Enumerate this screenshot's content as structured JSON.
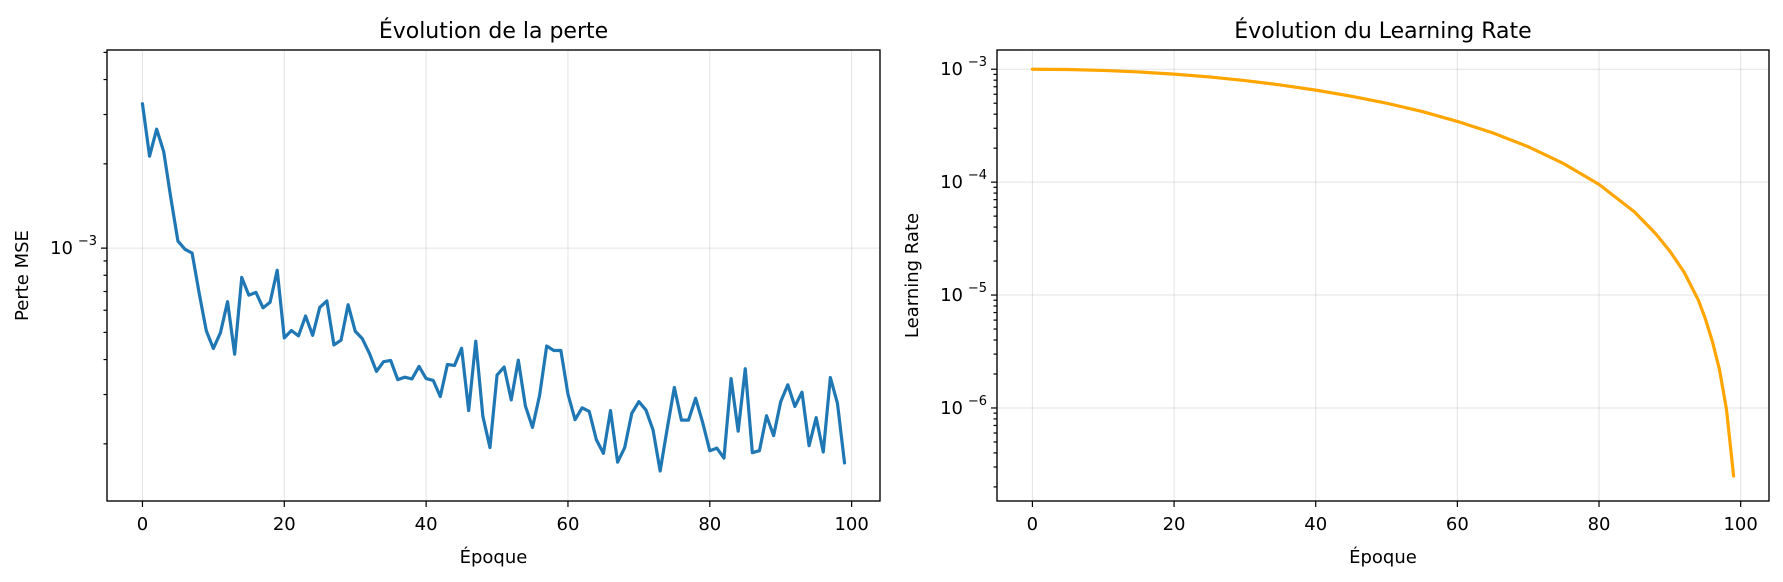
{
  "chart_data": [
    {
      "type": "line",
      "title": "Évolution de la perte",
      "xlabel": "Époque",
      "ylabel": "Perte MSE",
      "yscale": "log",
      "xlim": [
        -5,
        104
      ],
      "ylim": [
        0.000125,
        0.0051
      ],
      "grid": true,
      "x_ticks": [
        "0",
        "20",
        "40",
        "60",
        "80",
        "100"
      ],
      "y_ticks": [
        {
          "value": 0.001,
          "base": "10",
          "exp": "−3"
        }
      ],
      "color": "#1f77b4",
      "series": [
        {
          "x": [
            0,
            1,
            2,
            3,
            4,
            5,
            6,
            7,
            8,
            9,
            10,
            11,
            12,
            13,
            14,
            15,
            16,
            17,
            18,
            19,
            20,
            21,
            22,
            23,
            24,
            25,
            26,
            27,
            28,
            29,
            30,
            31,
            32,
            33,
            34,
            35,
            36,
            37,
            38,
            39,
            40,
            41,
            42,
            43,
            44,
            45,
            46,
            47,
            48,
            49,
            50,
            51,
            52,
            53,
            54,
            55,
            56,
            57,
            58,
            59,
            60,
            61,
            62,
            63,
            64,
            65,
            66,
            67,
            68,
            69,
            70,
            71,
            72,
            73,
            74,
            75,
            76,
            77,
            78,
            79,
            80,
            81,
            82,
            83,
            84,
            85,
            86,
            87,
            88,
            89,
            90,
            91,
            92,
            93,
            94,
            95,
            96,
            97,
            98,
            99
          ],
          "values": [
            0.00328,
            0.00213,
            0.00266,
            0.00221,
            0.00151,
            0.00106,
            0.00099,
            0.00096,
            0.00069,
            0.000507,
            0.000438,
            0.000499,
            0.000644,
            0.000418,
            0.000786,
            0.000679,
            0.000695,
            0.000612,
            0.000641,
            0.000834,
            0.000478,
            0.000508,
            0.000486,
            0.000572,
            0.000488,
            0.000614,
            0.000648,
            0.000451,
            0.000469,
            0.000628,
            0.000505,
            0.000475,
            0.000421,
            0.000363,
            0.000393,
            0.000397,
            0.000339,
            0.000346,
            0.000341,
            0.000378,
            0.000342,
            0.000337,
            0.000295,
            0.000384,
            0.000381,
            0.000439,
            0.000263,
            0.000465,
            0.000251,
            0.000194,
            0.000352,
            0.000376,
            0.000287,
            0.000398,
            0.000273,
            0.000229,
            0.000298,
            0.000447,
            0.000431,
            0.000431,
            0.000301,
            0.000244,
            0.000269,
            0.000261,
            0.000207,
            0.000185,
            0.000263,
            0.000172,
            0.000194,
            0.000257,
            0.000283,
            0.000264,
            0.000224,
            0.00016,
            0.000227,
            0.000318,
            0.000243,
            0.000243,
            0.000291,
            0.000238,
            0.000189,
            0.000193,
            0.000178,
            0.000342,
            0.000222,
            0.000371,
            0.000186,
            0.000189,
            0.000252,
            0.000214,
            0.000283,
            0.000325,
            0.000272,
            0.000306,
            0.000197,
            0.000248,
            0.000187,
            0.000345,
            0.000279,
            0.000171
          ]
        }
      ]
    },
    {
      "type": "line",
      "title": "Évolution du Learning Rate",
      "xlabel": "Époque",
      "ylabel": "Learning Rate",
      "yscale": "log",
      "xlim": [
        -5,
        104
      ],
      "ylim": [
        1.5e-07,
        0.00148
      ],
      "grid": true,
      "x_ticks": [
        "0",
        "20",
        "40",
        "60",
        "80",
        "100"
      ],
      "y_ticks": [
        {
          "value": 0.001,
          "base": "10",
          "exp": "−3"
        },
        {
          "value": 0.0001,
          "base": "10",
          "exp": "−4"
        },
        {
          "value": 1e-05,
          "base": "10",
          "exp": "−5"
        },
        {
          "value": 1e-06,
          "base": "10",
          "exp": "−6"
        }
      ],
      "color": "#ffa500",
      "series": [
        {
          "x": [
            0,
            5,
            10,
            15,
            20,
            25,
            30,
            35,
            40,
            45,
            50,
            55,
            60,
            65,
            70,
            75,
            80,
            85,
            88,
            90,
            92,
            94,
            95,
            96,
            97,
            98,
            99
          ],
          "values": [
            0.001,
            0.000994,
            0.000976,
            0.000946,
            0.000905,
            0.000854,
            0.000794,
            0.000726,
            0.000653,
            0.000577,
            0.0005,
            0.000423,
            0.000345,
            0.000273,
            0.000206,
            0.000146,
            9.55e-05,
            5.45e-05,
            3.49e-05,
            2.45e-05,
            1.6e-05,
            9.1e-06,
            6.2e-06,
            3.9e-06,
            2.2e-06,
            9.7e-07,
            2.5e-07
          ]
        }
      ]
    }
  ]
}
